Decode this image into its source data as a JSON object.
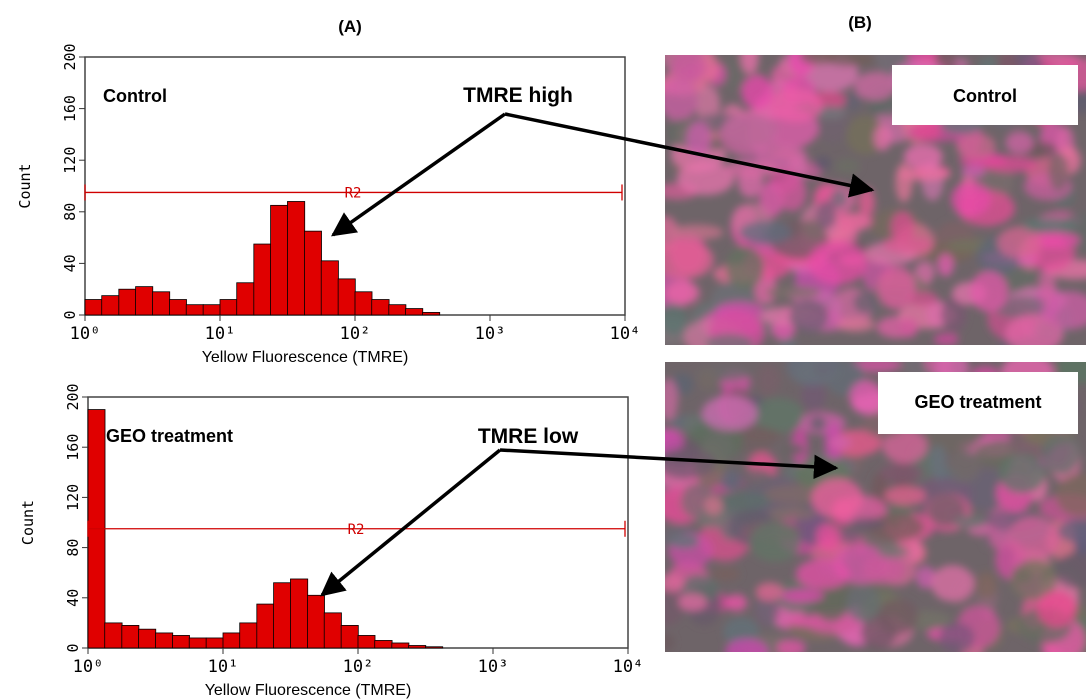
{
  "panel_labels": [
    "(A)",
    "(B)"
  ],
  "chart_data": [
    {
      "type": "histogram",
      "title": "Control",
      "annotation": "TMRE high",
      "xlabel": "Yellow Fluorescence (TMRE)",
      "ylabel": "Count",
      "log_x": true,
      "color": "#e00000",
      "xlim": [
        1,
        10000
      ],
      "ylim": [
        0,
        200
      ],
      "xticks": [
        {
          "value": 1,
          "label": "10⁰"
        },
        {
          "value": 10,
          "label": "10¹"
        },
        {
          "value": 100,
          "label": "10²"
        },
        {
          "value": 1000,
          "label": "10³"
        },
        {
          "value": 10000,
          "label": "10⁴"
        }
      ],
      "yticks": [
        0,
        40,
        80,
        120,
        160,
        200
      ],
      "gate": {
        "label": "R2",
        "y": 95,
        "x": [
          1,
          10000
        ]
      },
      "bins": [
        1,
        1.33,
        1.78,
        2.37,
        3.16,
        4.22,
        5.62,
        7.5,
        10,
        13.3,
        17.8,
        23.7,
        31.6,
        42.2,
        56.2,
        75,
        100,
        133,
        178,
        237,
        316,
        422,
        562,
        750,
        1000,
        1330,
        1780,
        2370,
        3160,
        4220,
        5620,
        7500,
        10000
      ],
      "values": [
        12,
        15,
        20,
        22,
        18,
        12,
        8,
        8,
        12,
        25,
        55,
        85,
        88,
        65,
        42,
        28,
        18,
        12,
        8,
        5,
        2,
        0,
        0,
        0,
        0,
        0,
        0,
        0,
        0,
        0,
        0,
        0
      ]
    },
    {
      "type": "histogram",
      "title": "GEO treatment",
      "annotation": "TMRE low",
      "xlabel": "Yellow Fluorescence (TMRE)",
      "ylabel": "Count",
      "log_x": true,
      "color": "#e00000",
      "xlim": [
        1,
        10000
      ],
      "ylim": [
        0,
        200
      ],
      "xticks": [
        {
          "value": 1,
          "label": "10⁰"
        },
        {
          "value": 10,
          "label": "10¹"
        },
        {
          "value": 100,
          "label": "10²"
        },
        {
          "value": 1000,
          "label": "10³"
        },
        {
          "value": 10000,
          "label": "10⁴"
        }
      ],
      "yticks": [
        0,
        40,
        80,
        120,
        160,
        200
      ],
      "gate": {
        "label": "R2",
        "y": 95,
        "x": [
          1,
          10000
        ]
      },
      "bins": [
        1,
        1.33,
        1.78,
        2.37,
        3.16,
        4.22,
        5.62,
        7.5,
        10,
        13.3,
        17.8,
        23.7,
        31.6,
        42.2,
        56.2,
        75,
        100,
        133,
        178,
        237,
        316,
        422,
        562,
        750,
        1000,
        1330,
        1780,
        2370,
        3160,
        4220,
        5620,
        7500,
        10000
      ],
      "values": [
        190,
        20,
        18,
        15,
        12,
        10,
        8,
        8,
        12,
        20,
        35,
        52,
        55,
        42,
        28,
        18,
        10,
        6,
        4,
        2,
        1,
        0,
        0,
        0,
        0,
        0,
        0,
        0,
        0,
        0,
        0,
        0
      ]
    }
  ],
  "micrographs": [
    {
      "label": "Control"
    },
    {
      "label": "GEO treatment"
    }
  ]
}
